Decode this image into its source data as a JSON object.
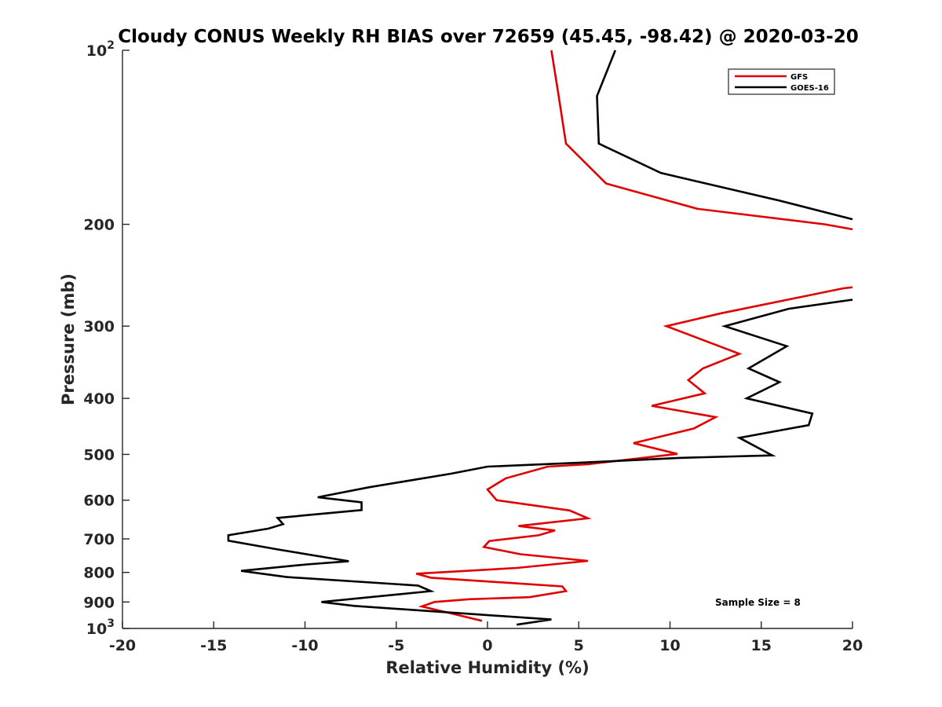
{
  "chart_data": {
    "type": "line",
    "title": "Cloudy CONUS Weekly RH BIAS over 72659 (45.45, -98.42) @ 2020-03-20",
    "xlabel": "Relative Humidity (%)",
    "ylabel": "Pressure (mb)",
    "xlim": [
      -20,
      20
    ],
    "ylim": [
      100,
      1000
    ],
    "y_scale": "log",
    "y_reversed": true,
    "x_ticks": [
      "-20",
      "-15",
      "-10",
      "-5",
      "0",
      "5",
      "10",
      "15",
      "20"
    ],
    "y_ticks": [
      {
        "value": 100,
        "base": "10",
        "exp": "2"
      },
      {
        "value": 200,
        "label": "200"
      },
      {
        "value": 300,
        "label": "300"
      },
      {
        "value": 400,
        "label": "400"
      },
      {
        "value": 500,
        "label": "500"
      },
      {
        "value": 600,
        "label": "600"
      },
      {
        "value": 700,
        "label": "700"
      },
      {
        "value": 800,
        "label": "800"
      },
      {
        "value": 900,
        "label": "900"
      },
      {
        "value": 1000,
        "base": "10",
        "exp": "3"
      }
    ],
    "grid": false,
    "legend_position": "top-right",
    "annotation": "Sample Size = 8",
    "series": [
      {
        "name": "GFS",
        "color": "#e00000",
        "points": [
          [
            3.5,
            100
          ],
          [
            3.9,
            120
          ],
          [
            4.3,
            145
          ],
          [
            6.5,
            170
          ],
          [
            11.5,
            188
          ],
          [
            18.5,
            200
          ],
          [
            20,
            204
          ],
          [
            null,
            null
          ],
          [
            20,
            257
          ],
          [
            19.5,
            258
          ],
          [
            12.8,
            285
          ],
          [
            9.8,
            300
          ],
          [
            13.8,
            335
          ],
          [
            11.8,
            355
          ],
          [
            11.0,
            372
          ],
          [
            11.9,
            392
          ],
          [
            9.0,
            412
          ],
          [
            12.5,
            431
          ],
          [
            11.3,
            451
          ],
          [
            8.0,
            478
          ],
          [
            10.4,
            499
          ],
          [
            5.5,
            520
          ],
          [
            3.3,
            525
          ],
          [
            1.0,
            550
          ],
          [
            0,
            575
          ],
          [
            0.5,
            600
          ],
          [
            4.5,
            625
          ],
          [
            5.5,
            645
          ],
          [
            1.7,
            665
          ],
          [
            3.7,
            677
          ],
          [
            2.8,
            690
          ],
          [
            0.1,
            706
          ],
          [
            -0.2,
            723
          ],
          [
            1.8,
            744
          ],
          [
            5.5,
            764
          ],
          [
            1.6,
            786
          ],
          [
            -3.9,
            804
          ],
          [
            -3.1,
            817
          ],
          [
            4.1,
            846
          ],
          [
            4.3,
            862
          ],
          [
            2.3,
            883
          ],
          [
            -1.0,
            890
          ],
          [
            -2.9,
            900
          ],
          [
            -3.6,
            916
          ],
          [
            -1.8,
            945
          ],
          [
            -0.3,
            970
          ]
        ]
      },
      {
        "name": "GOES-16",
        "color": "#000000",
        "points": [
          [
            7.0,
            100
          ],
          [
            6.0,
            120
          ],
          [
            6.1,
            145
          ],
          [
            9.5,
            163
          ],
          [
            16.0,
            182
          ],
          [
            20,
            196
          ],
          [
            null,
            null
          ],
          [
            20,
            270
          ],
          [
            16.5,
            280
          ],
          [
            13.0,
            300
          ],
          [
            16.4,
            325
          ],
          [
            14.3,
            355
          ],
          [
            16.0,
            375
          ],
          [
            14.2,
            400
          ],
          [
            17.8,
            425
          ],
          [
            17.6,
            445
          ],
          [
            13.8,
            468
          ],
          [
            15.6,
            502
          ],
          [
            10.5,
            507
          ],
          [
            5.0,
            517
          ],
          [
            0,
            525
          ],
          [
            -2.0,
            540
          ],
          [
            -6.5,
            570
          ],
          [
            -9.3,
            593
          ],
          [
            -6.9,
            605
          ],
          [
            -6.9,
            624
          ],
          [
            -11.5,
            644
          ],
          [
            -11.2,
            660
          ],
          [
            -12.0,
            672
          ],
          [
            -14.2,
            690
          ],
          [
            -14.2,
            705
          ],
          [
            -11.5,
            730
          ],
          [
            -7.6,
            765
          ],
          [
            -9.9,
            775
          ],
          [
            -13.5,
            795
          ],
          [
            -11.0,
            815
          ],
          [
            -3.8,
            843
          ],
          [
            -3.1,
            862
          ],
          [
            -9.1,
            900
          ],
          [
            -7.3,
            914
          ],
          [
            3.5,
            965
          ],
          [
            1.6,
            985
          ]
        ]
      }
    ]
  }
}
